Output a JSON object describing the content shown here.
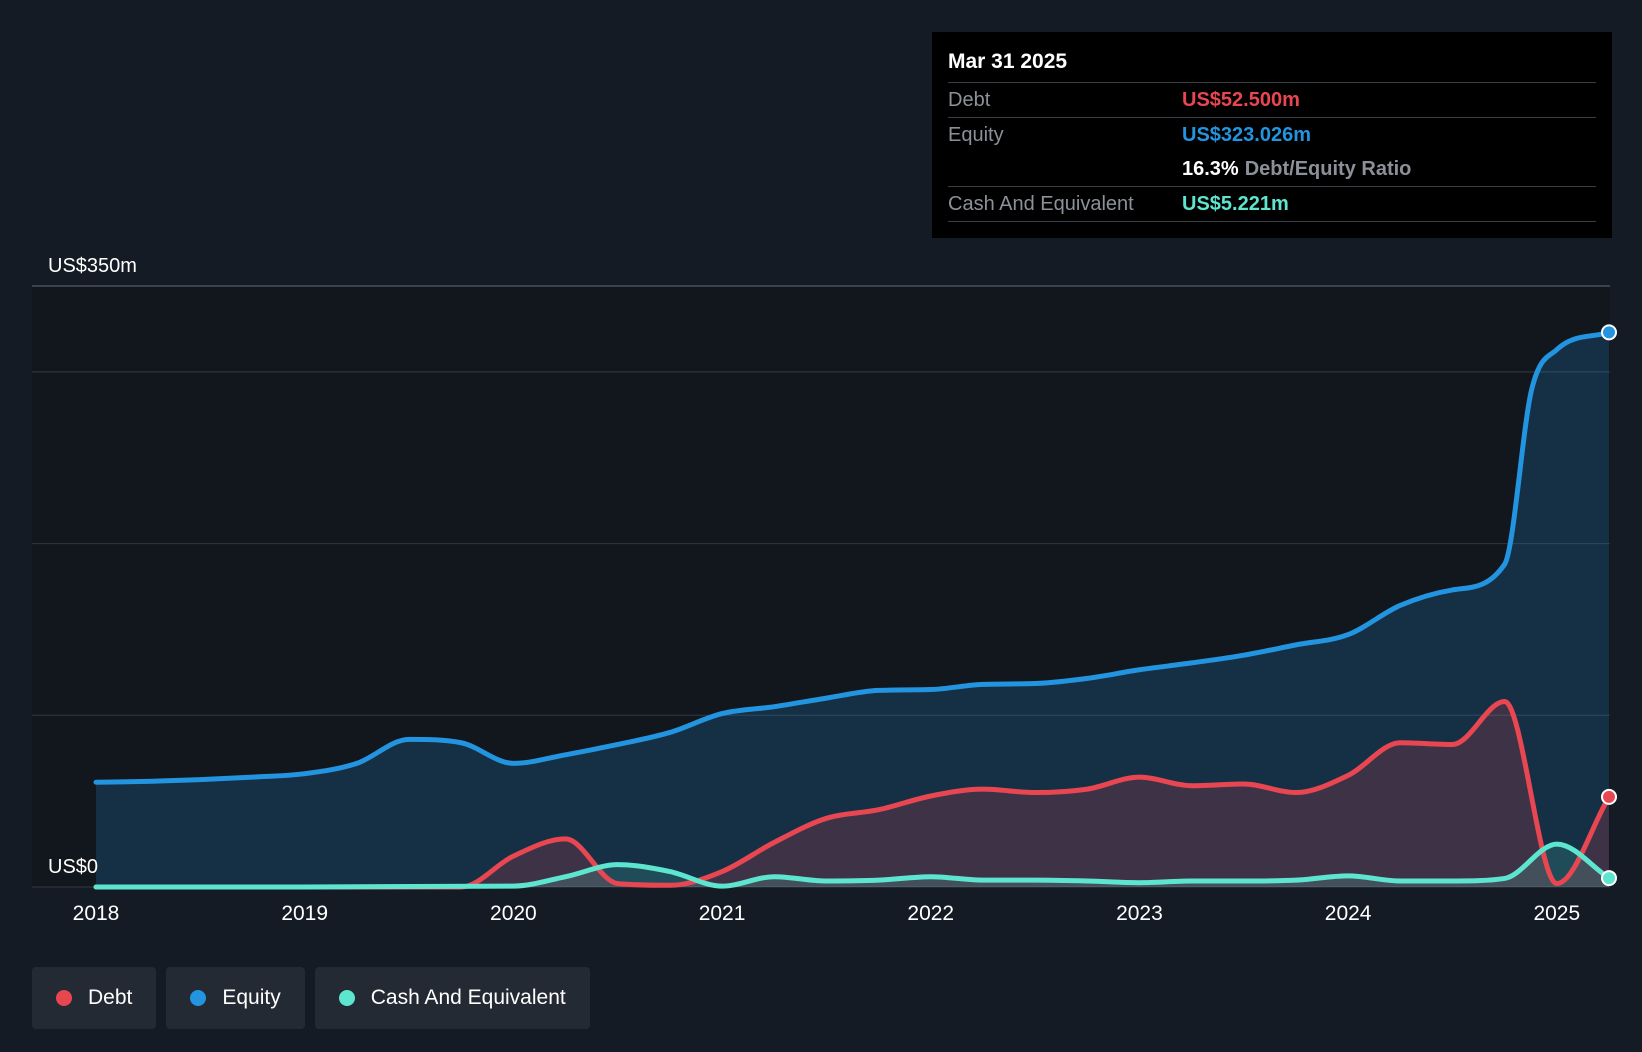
{
  "colors": {
    "debt": "#e84651",
    "equity": "#2394df",
    "cash": "#5ee5d0",
    "background": "#151b24",
    "plot_background": "#12161d",
    "gridline": "#2c333d"
  },
  "tooltip": {
    "date": "Mar 31 2025",
    "debt_label": "Debt",
    "debt_value": "US$52.500m",
    "equity_label": "Equity",
    "equity_value": "US$323.026m",
    "ratio_value": "16.3%",
    "ratio_label": "Debt/Equity Ratio",
    "cash_label": "Cash And Equivalent",
    "cash_value": "US$5.221m"
  },
  "legend": {
    "debt": "Debt",
    "equity": "Equity",
    "cash": "Cash And Equivalent"
  },
  "chart_data": {
    "type": "area",
    "title": "",
    "xlabel": "",
    "ylabel": "",
    "ylim": [
      0,
      350
    ],
    "xlim": [
      2018.0,
      2025.25
    ],
    "y_tick_labels": [
      {
        "value": 350,
        "label": "US$350m"
      },
      {
        "value": 0,
        "label": "US$0"
      }
    ],
    "gridlines": [
      350,
      300,
      200,
      100,
      0
    ],
    "x_ticks": [
      2018,
      2019,
      2020,
      2021,
      2022,
      2023,
      2024,
      2025
    ],
    "series": [
      {
        "name": "Equity",
        "color_key": "equity",
        "points": [
          [
            2018.0,
            61
          ],
          [
            2018.25,
            61.5
          ],
          [
            2018.5,
            62.5
          ],
          [
            2018.75,
            64
          ],
          [
            2019.0,
            66
          ],
          [
            2019.25,
            72
          ],
          [
            2019.5,
            86
          ],
          [
            2019.75,
            84
          ],
          [
            2020.0,
            72
          ],
          [
            2020.25,
            77
          ],
          [
            2020.5,
            83
          ],
          [
            2020.75,
            90
          ],
          [
            2021.0,
            101
          ],
          [
            2021.25,
            105
          ],
          [
            2021.5,
            110
          ],
          [
            2021.75,
            114.5
          ],
          [
            2022.0,
            115
          ],
          [
            2022.25,
            118
          ],
          [
            2022.5,
            118.5
          ],
          [
            2022.75,
            121.5
          ],
          [
            2023.0,
            126.5
          ],
          [
            2023.25,
            130.5
          ],
          [
            2023.5,
            135
          ],
          [
            2023.75,
            141
          ],
          [
            2024.0,
            147
          ],
          [
            2024.25,
            164
          ],
          [
            2024.5,
            173
          ],
          [
            2024.75,
            188
          ],
          [
            2024.88,
            290
          ],
          [
            2025.0,
            313
          ],
          [
            2025.25,
            323
          ]
        ]
      },
      {
        "name": "Debt",
        "color_key": "debt",
        "points": [
          [
            2018.0,
            0
          ],
          [
            2019.0,
            0
          ],
          [
            2019.75,
            0
          ],
          [
            2020.0,
            18
          ],
          [
            2020.25,
            28
          ],
          [
            2020.5,
            2
          ],
          [
            2020.75,
            1
          ],
          [
            2021.0,
            9
          ],
          [
            2021.25,
            26
          ],
          [
            2021.5,
            40
          ],
          [
            2021.75,
            45
          ],
          [
            2022.0,
            53
          ],
          [
            2022.25,
            57
          ],
          [
            2022.5,
            55
          ],
          [
            2022.75,
            57
          ],
          [
            2023.0,
            64
          ],
          [
            2023.25,
            59
          ],
          [
            2023.5,
            60
          ],
          [
            2023.75,
            55
          ],
          [
            2024.0,
            65
          ],
          [
            2024.25,
            84
          ],
          [
            2024.5,
            83
          ],
          [
            2024.75,
            108
          ],
          [
            2025.0,
            2
          ],
          [
            2025.25,
            52.5
          ]
        ]
      },
      {
        "name": "Cash And Equivalent",
        "color_key": "cash",
        "points": [
          [
            2018.0,
            0
          ],
          [
            2019.0,
            0
          ],
          [
            2020.0,
            0.5
          ],
          [
            2020.25,
            6
          ],
          [
            2020.5,
            13
          ],
          [
            2020.75,
            9
          ],
          [
            2021.0,
            0.5
          ],
          [
            2021.25,
            6
          ],
          [
            2021.5,
            3.5
          ],
          [
            2021.75,
            4
          ],
          [
            2022.0,
            6
          ],
          [
            2022.25,
            4
          ],
          [
            2022.5,
            4
          ],
          [
            2022.75,
            3.5
          ],
          [
            2023.0,
            2.5
          ],
          [
            2023.25,
            3.5
          ],
          [
            2023.5,
            3.5
          ],
          [
            2023.75,
            4
          ],
          [
            2024.0,
            6.5
          ],
          [
            2024.25,
            3.5
          ],
          [
            2024.5,
            3.5
          ],
          [
            2024.75,
            5
          ],
          [
            2025.0,
            25
          ],
          [
            2025.25,
            5.2
          ]
        ]
      }
    ]
  }
}
